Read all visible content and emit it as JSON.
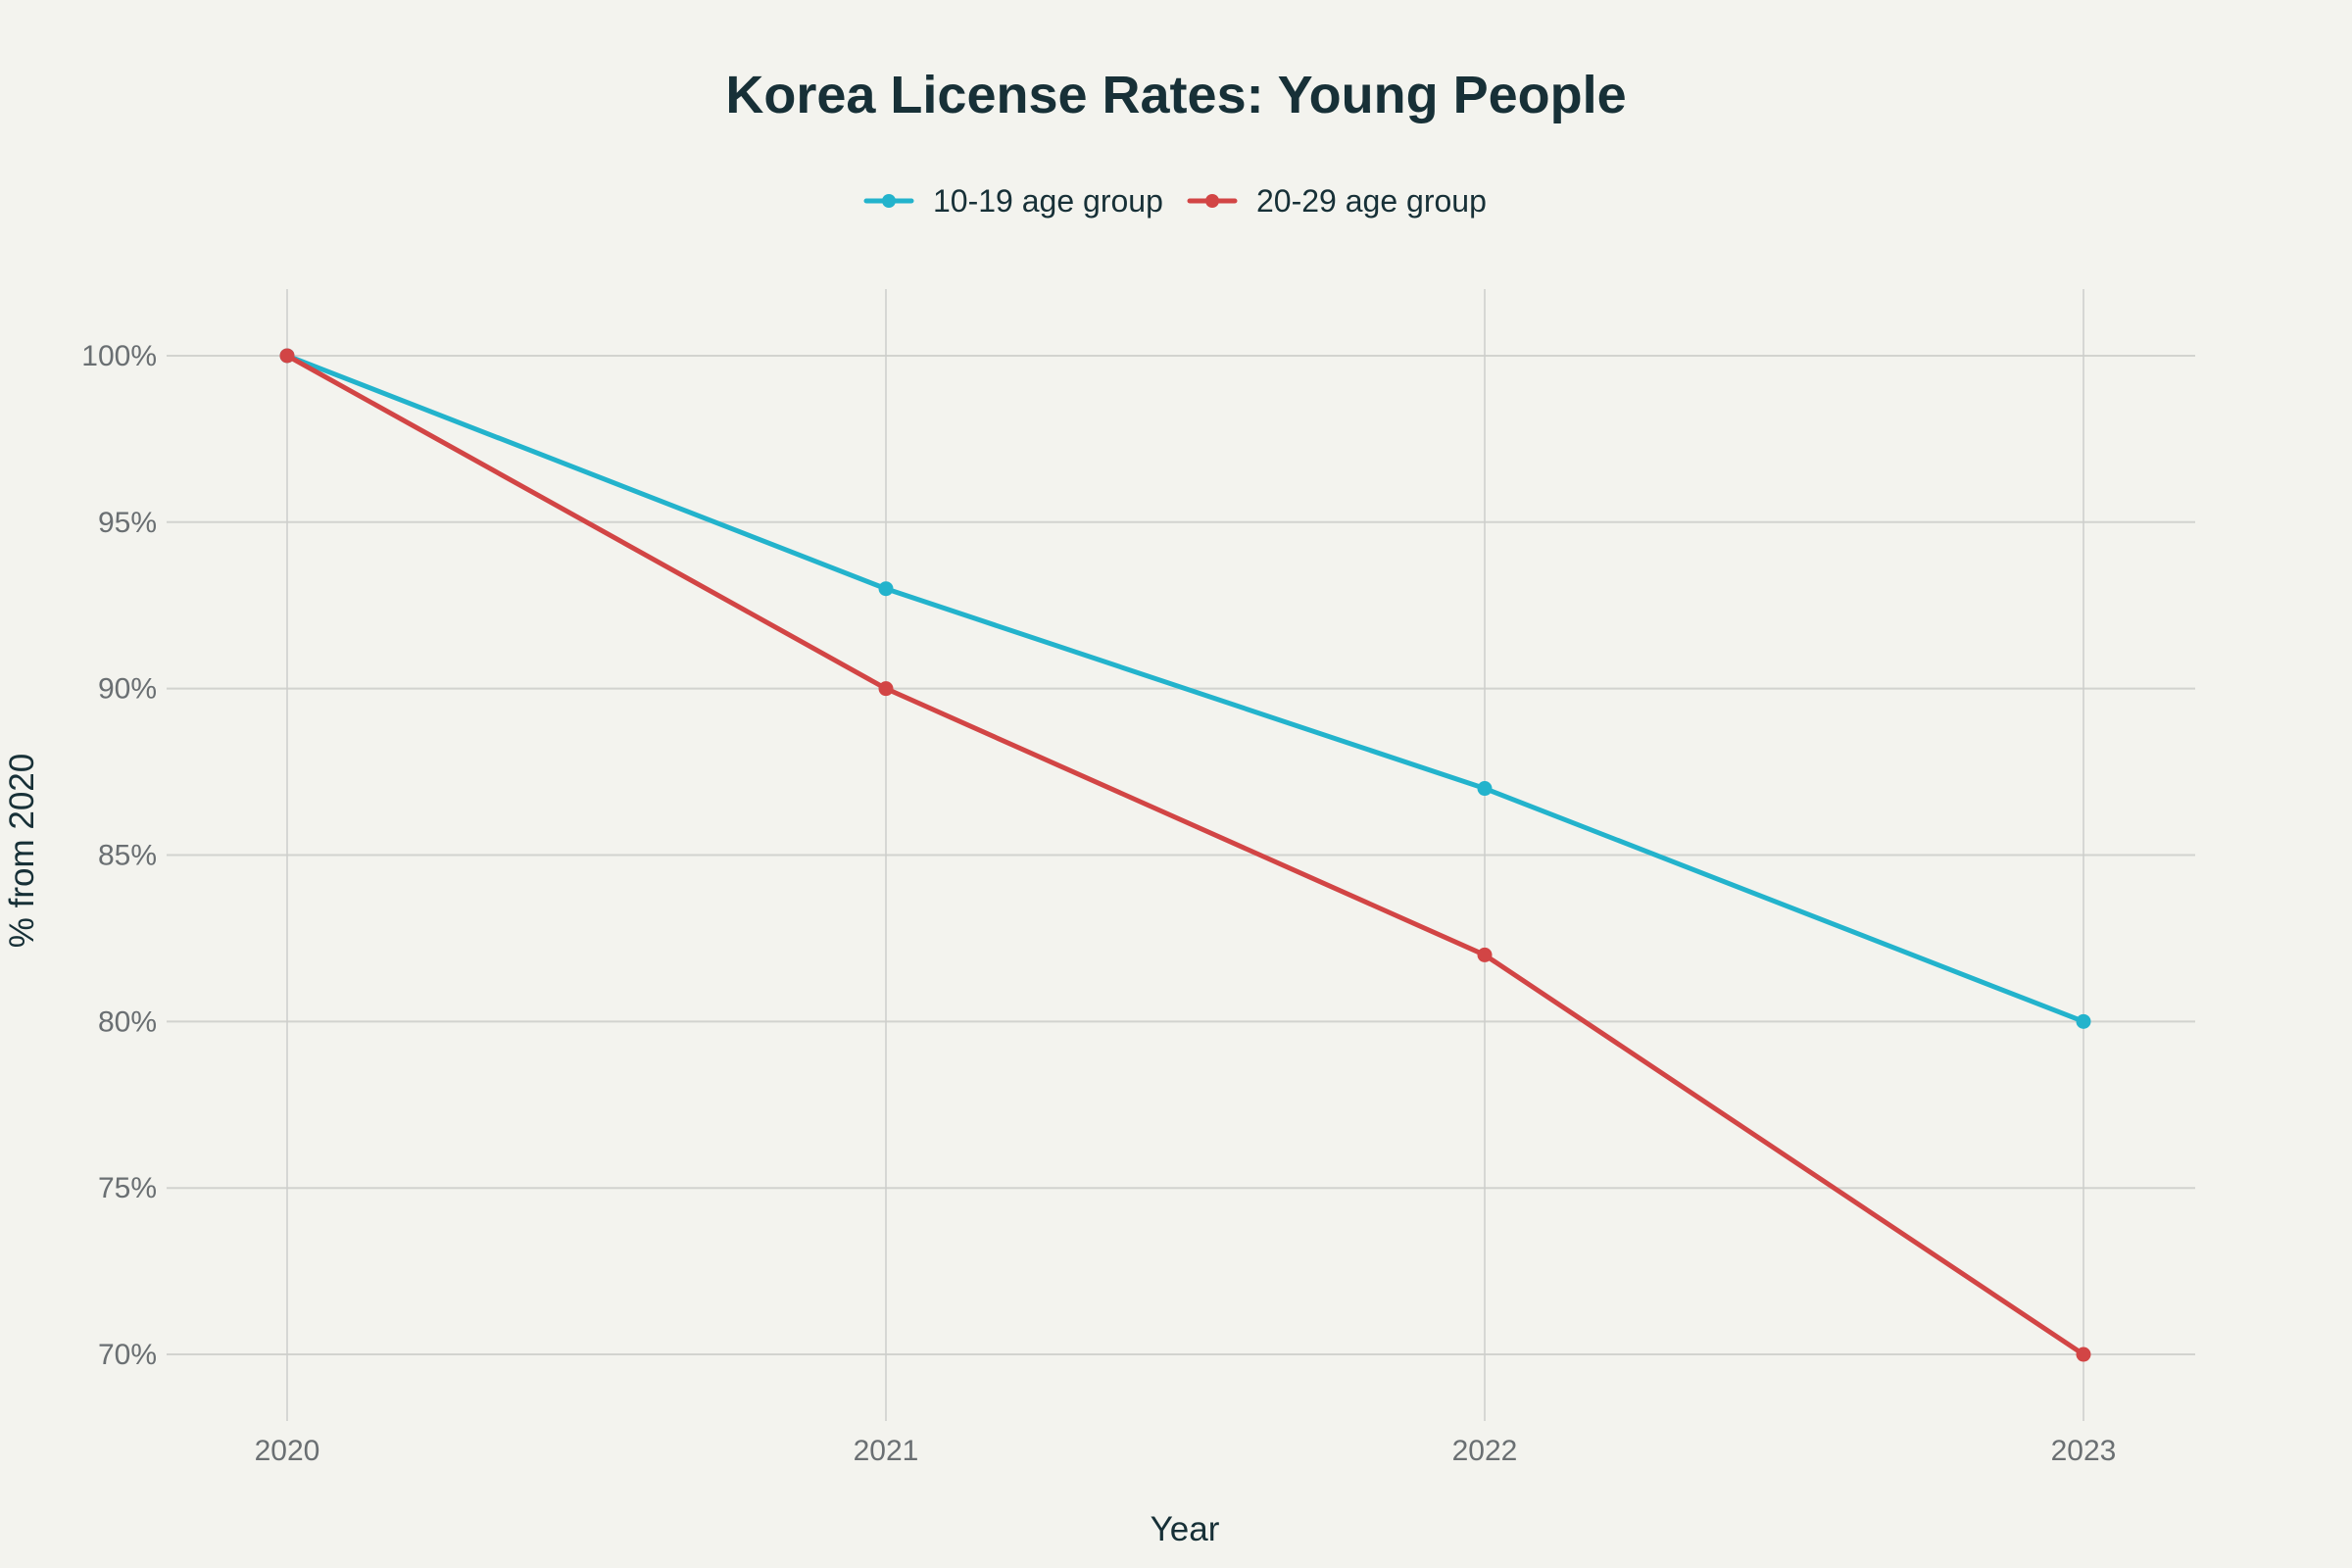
{
  "chart_data": {
    "type": "line",
    "title": "Korea License Rates: Young People",
    "xlabel": "Year",
    "ylabel": "% from 2020",
    "x": [
      "2020",
      "2021",
      "2022",
      "2023"
    ],
    "ylim": [
      68,
      102
    ],
    "yticks": [
      100,
      95,
      90,
      85,
      80,
      75,
      70
    ],
    "ytick_suffix": "%",
    "grid": true,
    "legend_position": "top-center",
    "series": [
      {
        "name": "10-19 age group",
        "color": "#23b3cc",
        "values": [
          100,
          93,
          87,
          80
        ]
      },
      {
        "name": "20-29 age group",
        "color": "#d24545",
        "values": [
          100,
          90,
          82,
          70
        ]
      }
    ]
  }
}
